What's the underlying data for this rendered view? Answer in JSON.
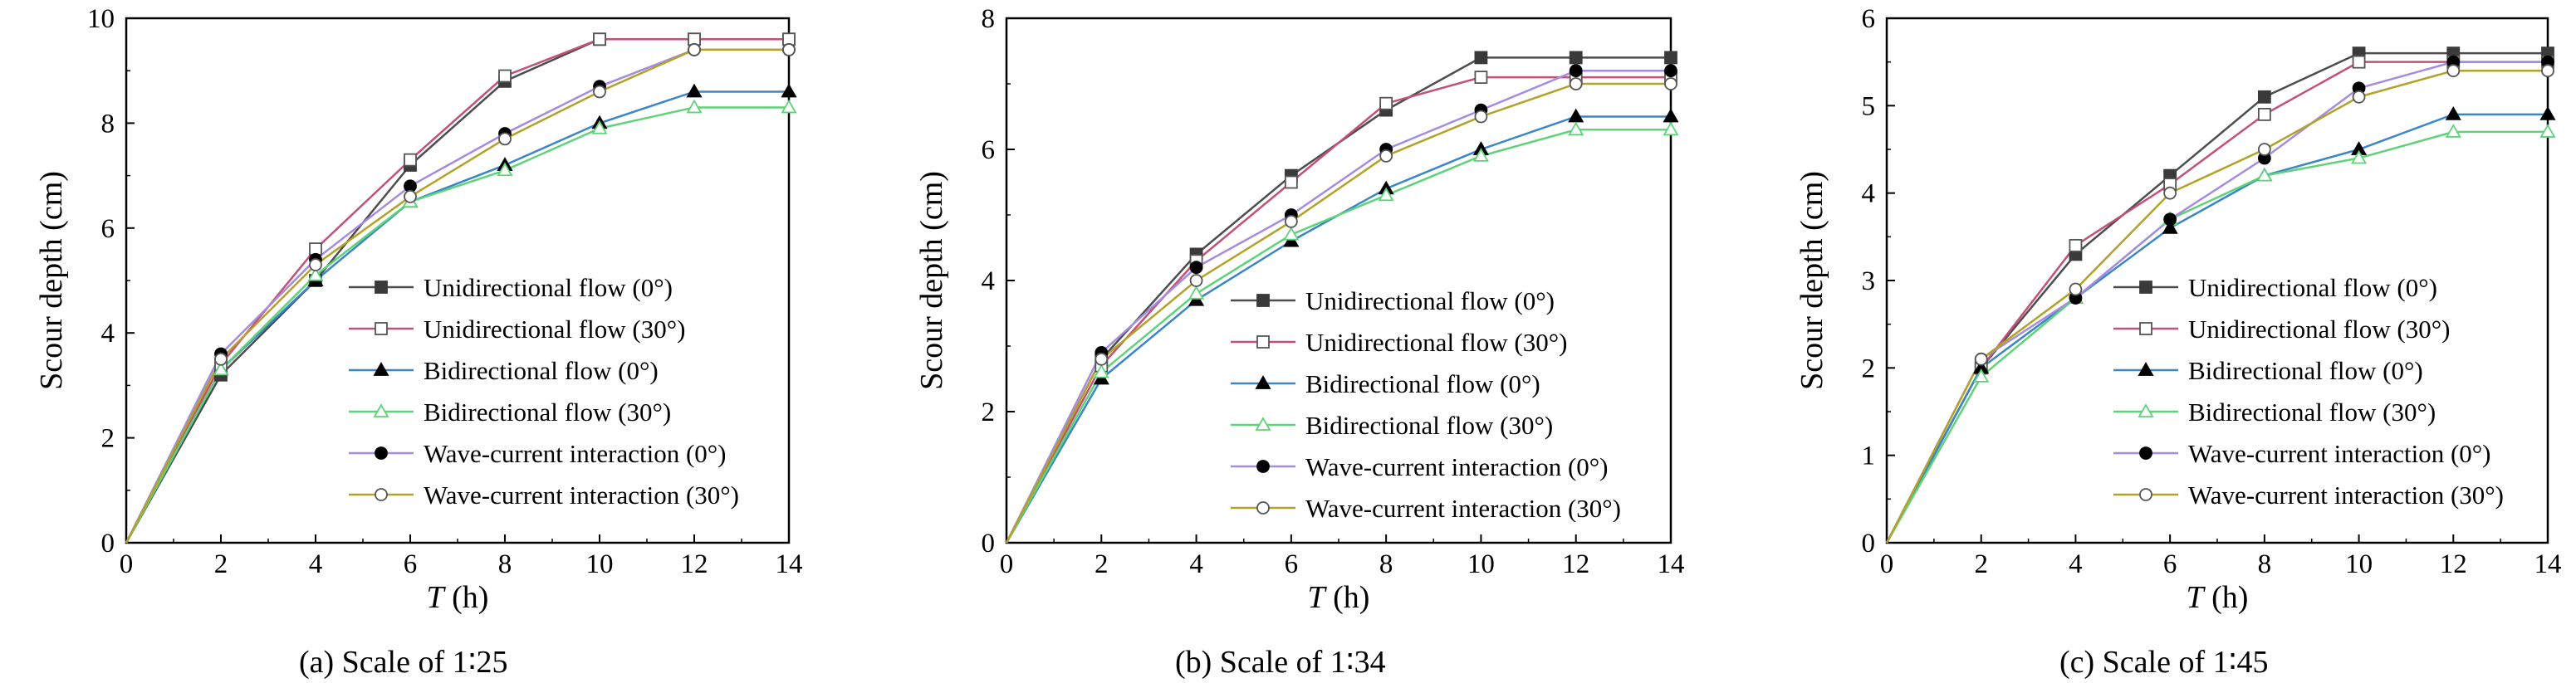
{
  "chart_data": [
    {
      "type": "line",
      "caption": "(a) Scale of 1∶25",
      "xlabel": "T (h)",
      "xlabel_var": "T",
      "xlabel_unit": "(h)",
      "ylabel": "Scour depth (cm)",
      "xlim": [
        0,
        14
      ],
      "ylim": [
        0,
        10
      ],
      "xticks": [
        0,
        2,
        4,
        6,
        8,
        10,
        12,
        14
      ],
      "yticks": [
        0,
        2,
        4,
        6,
        8,
        10
      ],
      "x": [
        0,
        2,
        4,
        6,
        8,
        10,
        12,
        14
      ],
      "legend_position": "lower-right",
      "series": [
        {
          "name": "Unidirectional flow (0°)",
          "values": [
            0,
            3.2,
            5.0,
            7.2,
            8.8,
            9.6,
            9.6,
            9.6
          ]
        },
        {
          "name": "Unidirectional flow (30°)",
          "values": [
            0,
            3.4,
            5.6,
            7.3,
            8.9,
            9.6,
            9.6,
            9.6
          ]
        },
        {
          "name": "Bidirectional flow (0°)",
          "values": [
            0,
            3.3,
            5.0,
            6.5,
            7.2,
            8.0,
            8.6,
            8.6
          ]
        },
        {
          "name": "Bidirectional flow (30°)",
          "values": [
            0,
            3.3,
            5.1,
            6.5,
            7.1,
            7.9,
            8.3,
            8.3
          ]
        },
        {
          "name": "Wave-current interaction (0°)",
          "values": [
            0,
            3.6,
            5.4,
            6.8,
            7.8,
            8.7,
            9.4,
            9.4
          ]
        },
        {
          "name": "Wave-current interaction (30°)",
          "values": [
            0,
            3.5,
            5.3,
            6.6,
            7.7,
            8.6,
            9.4,
            9.4
          ]
        }
      ]
    },
    {
      "type": "line",
      "caption": "(b) Scale of 1∶34",
      "xlabel": "T (h)",
      "xlabel_var": "T",
      "xlabel_unit": "(h)",
      "ylabel": "Scour depth (cm)",
      "xlim": [
        0,
        14
      ],
      "ylim": [
        0,
        8
      ],
      "xticks": [
        0,
        2,
        4,
        6,
        8,
        10,
        12,
        14
      ],
      "yticks": [
        0,
        2,
        4,
        6,
        8
      ],
      "x": [
        0,
        2,
        4,
        6,
        8,
        10,
        12,
        14
      ],
      "legend_position": "lower-right",
      "series": [
        {
          "name": "Unidirectional flow (0°)",
          "values": [
            0,
            2.8,
            4.4,
            5.6,
            6.6,
            7.4,
            7.4,
            7.4
          ]
        },
        {
          "name": "Unidirectional flow (30°)",
          "values": [
            0,
            2.7,
            4.3,
            5.5,
            6.7,
            7.1,
            7.1,
            7.1
          ]
        },
        {
          "name": "Bidirectional flow (0°)",
          "values": [
            0,
            2.5,
            3.7,
            4.6,
            5.4,
            6.0,
            6.5,
            6.5
          ]
        },
        {
          "name": "Bidirectional flow (30°)",
          "values": [
            0,
            2.6,
            3.8,
            4.7,
            5.3,
            5.9,
            6.3,
            6.3
          ]
        },
        {
          "name": "Wave-current interaction (0°)",
          "values": [
            0,
            2.9,
            4.2,
            5.0,
            6.0,
            6.6,
            7.2,
            7.2
          ]
        },
        {
          "name": "Wave-current interaction (30°)",
          "values": [
            0,
            2.8,
            4.0,
            4.9,
            5.9,
            6.5,
            7.0,
            7.0
          ]
        }
      ]
    },
    {
      "type": "line",
      "caption": "(c) Scale of 1∶45",
      "xlabel": "T (h)",
      "xlabel_var": "T",
      "xlabel_unit": "(h)",
      "ylabel": "Scour depth (cm)",
      "xlim": [
        0,
        14
      ],
      "ylim": [
        0,
        6
      ],
      "xticks": [
        0,
        2,
        4,
        6,
        8,
        10,
        12,
        14
      ],
      "yticks": [
        0,
        1,
        2,
        3,
        4,
        5,
        6
      ],
      "x": [
        0,
        2,
        4,
        6,
        8,
        10,
        12,
        14
      ],
      "legend_position": "lower-right",
      "series": [
        {
          "name": "Unidirectional flow (0°)",
          "values": [
            0,
            2.0,
            3.3,
            4.2,
            5.1,
            5.6,
            5.6,
            5.6
          ]
        },
        {
          "name": "Unidirectional flow (30°)",
          "values": [
            0,
            2.0,
            3.4,
            4.1,
            4.9,
            5.5,
            5.5,
            5.5
          ]
        },
        {
          "name": "Bidirectional flow (0°)",
          "values": [
            0,
            2.0,
            2.8,
            3.6,
            4.2,
            4.5,
            4.9,
            4.9
          ]
        },
        {
          "name": "Bidirectional flow (30°)",
          "values": [
            0,
            1.9,
            2.8,
            3.7,
            4.2,
            4.4,
            4.7,
            4.7
          ]
        },
        {
          "name": "Wave-current interaction (0°)",
          "values": [
            0,
            2.1,
            2.8,
            3.7,
            4.4,
            5.2,
            5.5,
            5.5
          ]
        },
        {
          "name": "Wave-current interaction (30°)",
          "values": [
            0,
            2.1,
            2.9,
            4.0,
            4.5,
            5.1,
            5.4,
            5.4
          ]
        }
      ]
    }
  ],
  "series_styles": [
    {
      "color": "#4d4d4d",
      "marker": "square-filled"
    },
    {
      "color": "#c2507a",
      "marker": "square-open"
    },
    {
      "color": "#3a86c8",
      "marker": "triangle-filled"
    },
    {
      "color": "#5fd37a",
      "marker": "triangle-open"
    },
    {
      "color": "#a58ce0",
      "marker": "circle-filled"
    },
    {
      "color": "#b3a227",
      "marker": "circle-open"
    }
  ]
}
